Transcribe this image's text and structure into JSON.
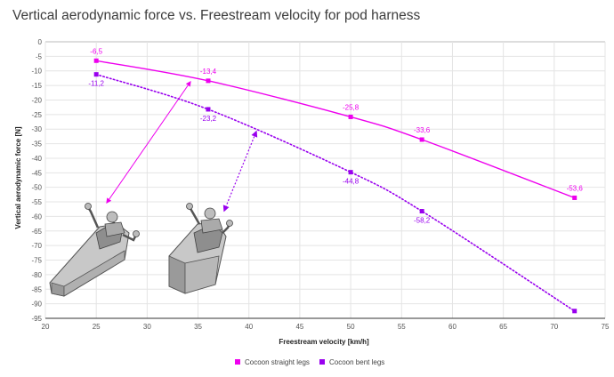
{
  "chart_data": {
    "type": "line",
    "title": "Vertical aerodynamic force vs. Freestream velocity for pod harness",
    "xlabel": "Freestream velocity [km/h]",
    "ylabel": "Vertical aerodynamic force [N]",
    "xlim": [
      20,
      75
    ],
    "ylim": [
      -95,
      0
    ],
    "x_ticks": [
      "20",
      "25",
      "30",
      "35",
      "40",
      "45",
      "50",
      "55",
      "60",
      "65",
      "70",
      "75"
    ],
    "y_ticks": [
      "0",
      "-5",
      "-10",
      "-15",
      "-20",
      "-25",
      "-30",
      "-35",
      "-40",
      "-45",
      "-50",
      "-55",
      "-60",
      "-65",
      "-70",
      "-75",
      "-80",
      "-85",
      "-90",
      "-95"
    ],
    "grid": true,
    "legend_position": "bottom",
    "series": [
      {
        "name": "Cocoon straight legs",
        "color": "#ee00ee",
        "line": "solid",
        "x": [
          25,
          36,
          50,
          57,
          72
        ],
        "y": [
          -6.5,
          -13.4,
          -25.8,
          -33.6,
          -53.6
        ],
        "labels": [
          "-6,5",
          "-13,4",
          "-25,8",
          "-33,6",
          "-53,6"
        ]
      },
      {
        "name": "Cocoon bent legs",
        "color": "#9900ee",
        "line": "dotted",
        "x": [
          25,
          36,
          50,
          57,
          72
        ],
        "y": [
          -11.2,
          -23.2,
          -44.8,
          -58.2,
          -92.5
        ],
        "labels": [
          "-11,2",
          "-23,2",
          "-44,8",
          "-58,2",
          ""
        ]
      }
    ]
  }
}
